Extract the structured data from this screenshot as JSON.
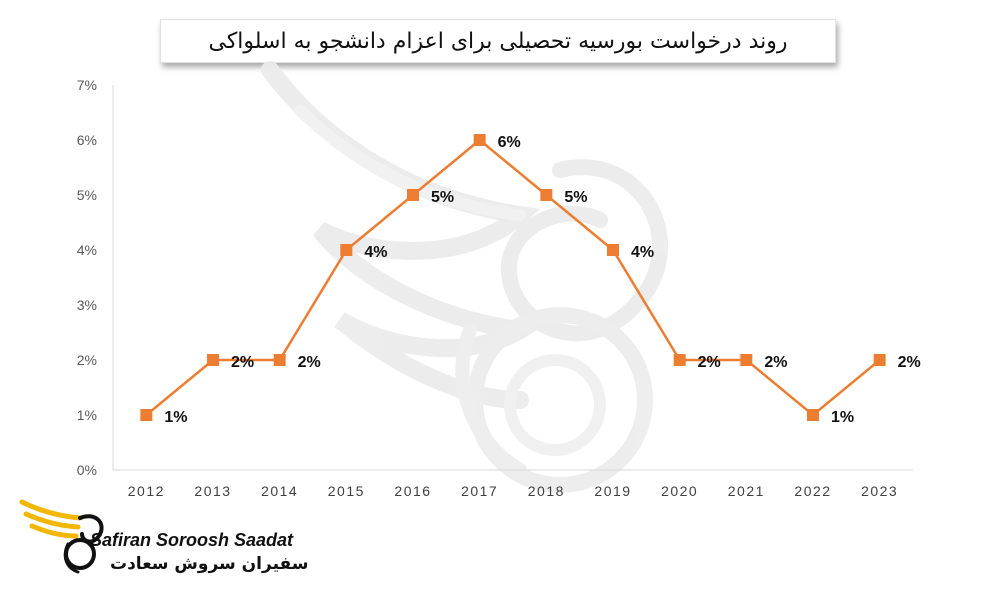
{
  "chart_data": {
    "type": "line",
    "title": "روند درخواست بورسیه تحصیلی برای اعزام دانشجو به اسلواکی",
    "categories": [
      "2012",
      "2013",
      "2014",
      "2015",
      "2016",
      "2017",
      "2018",
      "2019",
      "2020",
      "2021",
      "2022",
      "2023"
    ],
    "series": [
      {
        "values": [
          1,
          2,
          2,
          4,
          5,
          6,
          5,
          4,
          2,
          2,
          1,
          2
        ],
        "color": "#ED7D31"
      }
    ],
    "data_labels": [
      "1%",
      "2%",
      "2%",
      "4%",
      "5%",
      "6%",
      "5%",
      "4%",
      "2%",
      "2%",
      "1%",
      "2%"
    ],
    "y_ticks": [
      "0%",
      "1%",
      "2%",
      "3%",
      "4%",
      "5%",
      "6%",
      "7%"
    ],
    "ylim": [
      0,
      7
    ],
    "xlabel": "",
    "ylabel": "",
    "grid": false,
    "legend": "none",
    "marker": "square"
  },
  "logo": {
    "name_en": "Safiran Soroosh Saadat",
    "name_fa": "سفیران سروش سعادت",
    "icon": "phoenix-logo-icon",
    "colors": {
      "gold": "#F2B705",
      "dark": "#111111"
    }
  },
  "watermark": {
    "icon": "phoenix-watermark-icon"
  }
}
